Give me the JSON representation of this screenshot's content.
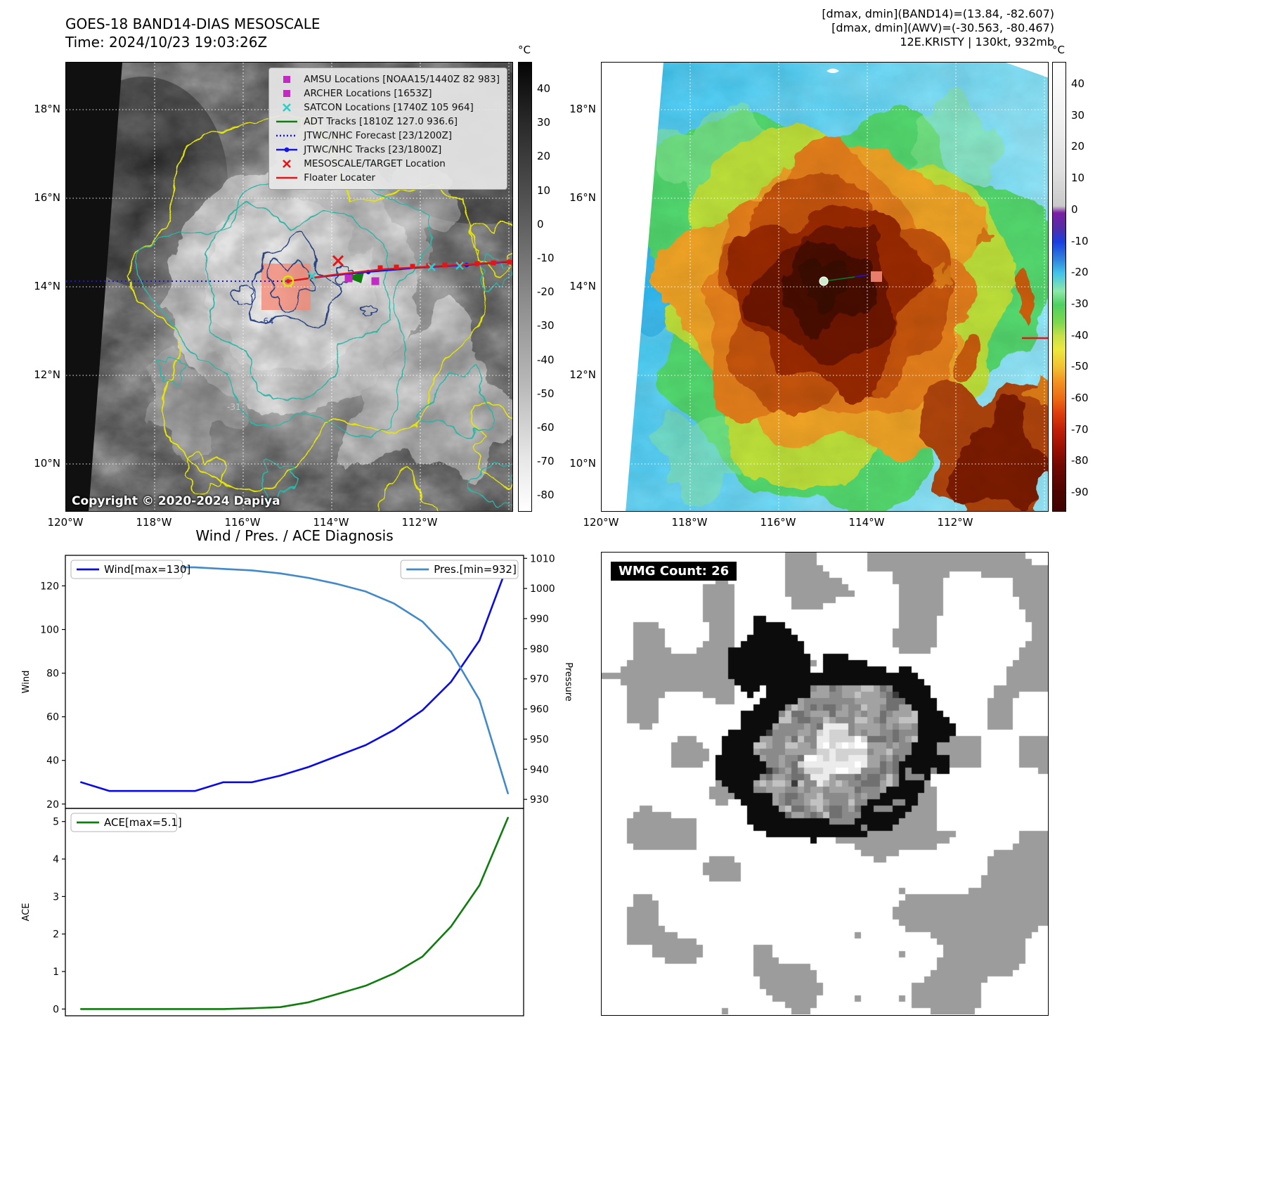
{
  "page": {
    "background": "#ffffff"
  },
  "panels": {
    "band14": {
      "title_line1": "GOES-18 BAND14-DIAS MESOSCALE",
      "title_line2": "Time: 2024/10/23 19:03:26Z",
      "copyright": "Copyright © 2020-2024 Dapiya",
      "contour_labels": [
        "-64",
        "-31"
      ],
      "colorbar": {
        "unit": "°C",
        "ticks": [
          "40",
          "30",
          "20",
          "10",
          "0",
          "-10",
          "-20",
          "-30",
          "-40",
          "-50",
          "-60",
          "-70",
          "-80"
        ]
      },
      "lat_ticks": [
        "18°N",
        "16°N",
        "14°N",
        "12°N",
        "10°N"
      ],
      "lon_ticks": [
        "120°W",
        "118°W",
        "116°W",
        "114°W",
        "112°W"
      ],
      "legend": [
        {
          "label": "AMSU Locations [NOAA15/1440Z 82 983]",
          "marker": "square",
          "color": "#c32ac3"
        },
        {
          "label": "ARCHER Locations [1653Z]",
          "marker": "square",
          "color": "#c32ac3"
        },
        {
          "label": "SATCON Locations [1740Z 105 964]",
          "marker": "x",
          "color": "#2ad0c8"
        },
        {
          "label": "ADT Tracks [1810Z 127.0 936.6]",
          "marker": "line",
          "color": "#0e7d0e"
        },
        {
          "label": "JTWC/NHC Forecast [23/1200Z]",
          "marker": "dotted",
          "color": "#1414e6"
        },
        {
          "label": "JTWC/NHC Tracks [23/1800Z]",
          "marker": "line-dot",
          "color": "#1414e6"
        },
        {
          "label": "MESOSCALE/TARGET Location",
          "marker": "x",
          "color": "#e61414"
        },
        {
          "label": "Floater Locater",
          "marker": "line",
          "color": "#e61414"
        }
      ]
    },
    "awv": {
      "header_lines": [
        "[dmax, dmin](BAND14)=(13.84, -82.607)",
        "[dmax, dmin](AWV)=(-30.563, -80.467)",
        "12E.KRISTY | 130kt, 932mb"
      ],
      "colorbar": {
        "unit": "°C",
        "ticks": [
          "40",
          "30",
          "20",
          "10",
          "0",
          "-10",
          "-20",
          "-30",
          "-40",
          "-50",
          "-60",
          "-70",
          "-80",
          "-90"
        ]
      },
      "lat_ticks": [
        "18°N",
        "16°N",
        "14°N",
        "12°N",
        "10°N"
      ],
      "lon_ticks": [
        "120°W",
        "118°W",
        "116°W",
        "114°W",
        "112°W"
      ]
    },
    "diagnosis": {
      "title": "Wind / Pres. / ACE Diagnosis"
    },
    "wmg": {
      "label": "WMG Count: 26"
    }
  },
  "chart_data": [
    {
      "type": "line",
      "title": "Wind / Pres. / ACE Diagnosis",
      "x": [
        0,
        1,
        2,
        3,
        4,
        5,
        6,
        7,
        8,
        9,
        10,
        11,
        12,
        13,
        14,
        15
      ],
      "series": [
        {
          "name": "Wind[max=130]",
          "axis": "left",
          "color": "#0a0ae6",
          "legend_loc": "upper-left",
          "values": [
            30,
            26,
            26,
            26,
            26,
            30,
            30,
            33,
            37,
            42,
            47,
            54,
            63,
            76,
            95,
            130
          ]
        },
        {
          "name": "Pres.[min=932]",
          "axis": "right",
          "color": "#4289c8",
          "legend_loc": "upper-right",
          "values": [
            1007,
            1007,
            1007,
            1007,
            1007,
            1006.5,
            1006,
            1005,
            1003.5,
            1001.5,
            999,
            995,
            989,
            979,
            963,
            932
          ]
        }
      ],
      "ylabel_left": "Wind",
      "ylabel_right": "Pressure",
      "ylim_left": [
        18,
        134
      ],
      "ylim_right": [
        927,
        1011
      ],
      "yticks_left": [
        20,
        40,
        60,
        80,
        100,
        120
      ],
      "yticks_right": [
        930,
        940,
        950,
        960,
        970,
        980,
        990,
        1000,
        1010
      ],
      "xlabel": "",
      "grid": false
    },
    {
      "type": "line",
      "title": "",
      "x": [
        0,
        1,
        2,
        3,
        4,
        5,
        6,
        7,
        8,
        9,
        10,
        11,
        12,
        13,
        14,
        15
      ],
      "series": [
        {
          "name": "ACE[max=5.1]",
          "axis": "left",
          "color": "#0e7d0e",
          "legend_loc": "upper-left",
          "values": [
            0,
            0,
            0,
            0,
            0,
            0,
            0.02,
            0.05,
            0.18,
            0.4,
            0.62,
            0.95,
            1.4,
            2.2,
            3.3,
            5.1
          ]
        }
      ],
      "ylabel_left": "ACE",
      "ylim_left": [
        -0.18,
        5.35
      ],
      "yticks_left": [
        0,
        1,
        2,
        3,
        4,
        5
      ],
      "xlabel": "",
      "grid": false
    }
  ]
}
